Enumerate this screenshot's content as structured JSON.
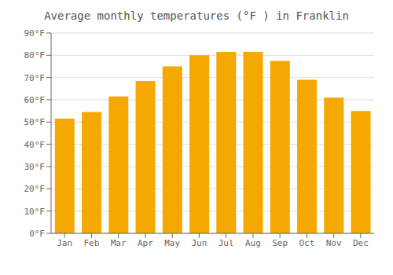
{
  "chart_data": {
    "type": "bar",
    "title": "Average monthly temperatures (°F ) in Franklin",
    "categories": [
      "Jan",
      "Feb",
      "Mar",
      "Apr",
      "May",
      "Jun",
      "Jul",
      "Aug",
      "Sep",
      "Oct",
      "Nov",
      "Dec"
    ],
    "values": [
      51.5,
      54.5,
      61.5,
      68.5,
      75.0,
      80.0,
      81.5,
      81.5,
      77.5,
      69.0,
      61.0,
      55.0
    ],
    "color": "#F5A800",
    "ylim": [
      0,
      90
    ],
    "yticks": [
      {
        "value": 0,
        "label": "0°F"
      },
      {
        "value": 10,
        "label": "10°F"
      },
      {
        "value": 20,
        "label": "20°F"
      },
      {
        "value": 30,
        "label": "30°F"
      },
      {
        "value": 40,
        "label": "40°F"
      },
      {
        "value": 50,
        "label": "50°F"
      },
      {
        "value": 60,
        "label": "60°F"
      },
      {
        "value": 70,
        "label": "70°F"
      },
      {
        "value": 80,
        "label": "80°F"
      },
      {
        "value": 90,
        "label": "90°F"
      }
    ],
    "grid": true
  }
}
